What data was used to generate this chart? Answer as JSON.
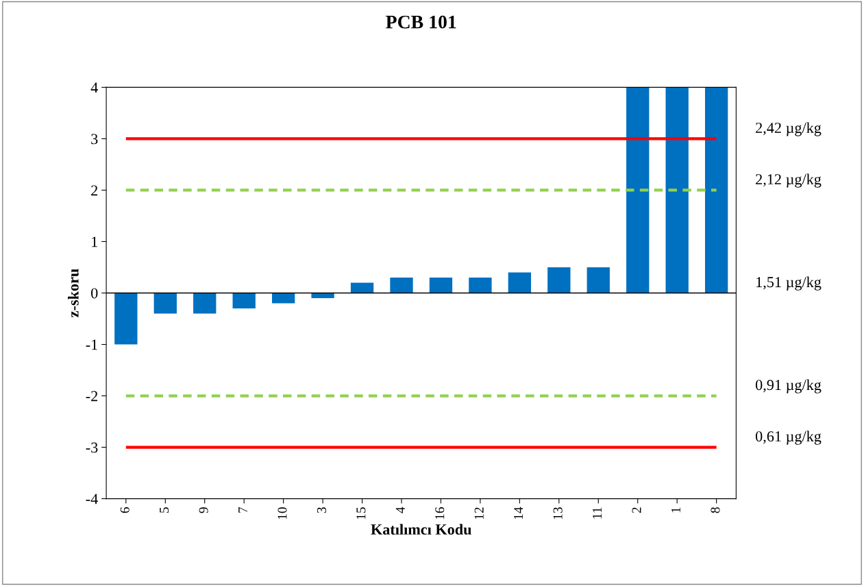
{
  "chart_data": {
    "type": "bar",
    "title": "PCB 101",
    "xlabel": "Katılımcı Kodu",
    "ylabel": "z-skoru",
    "categories": [
      "6",
      "5",
      "9",
      "7",
      "10",
      "3",
      "15",
      "4",
      "16",
      "12",
      "14",
      "13",
      "11",
      "2",
      "1",
      "8"
    ],
    "values": [
      -1,
      -0.4,
      -0.4,
      -0.3,
      -0.2,
      -0.1,
      0.2,
      0.3,
      0.3,
      0.3,
      0.4,
      0.5,
      0.5,
      4,
      4,
      4
    ],
    "color": "#0070c0",
    "ylim": [
      -4,
      4
    ],
    "yticks": [
      -4,
      -3,
      -2,
      -1,
      0,
      1,
      2,
      3,
      4
    ],
    "ref_lines": [
      {
        "axis": "y",
        "value": 3,
        "label": "2,42 µg/kg",
        "color": "#ff0000",
        "line_style": "solid"
      },
      {
        "axis": "y",
        "value": 2,
        "label": "2,12 µg/kg",
        "color": "#92d050",
        "line_style": "dashed"
      },
      {
        "axis": "y",
        "value": 0,
        "label": "1,51 µg/kg",
        "color": "#000000",
        "line_style": "solid"
      },
      {
        "axis": "y",
        "value": -2,
        "label": "0,91 µg/kg",
        "color": "#92d050",
        "line_style": "dashed"
      },
      {
        "axis": "y",
        "value": -3,
        "label": "0,61 µg/kg",
        "color": "#ff0000",
        "line_style": "solid"
      }
    ],
    "grid": false,
    "legend": false
  }
}
